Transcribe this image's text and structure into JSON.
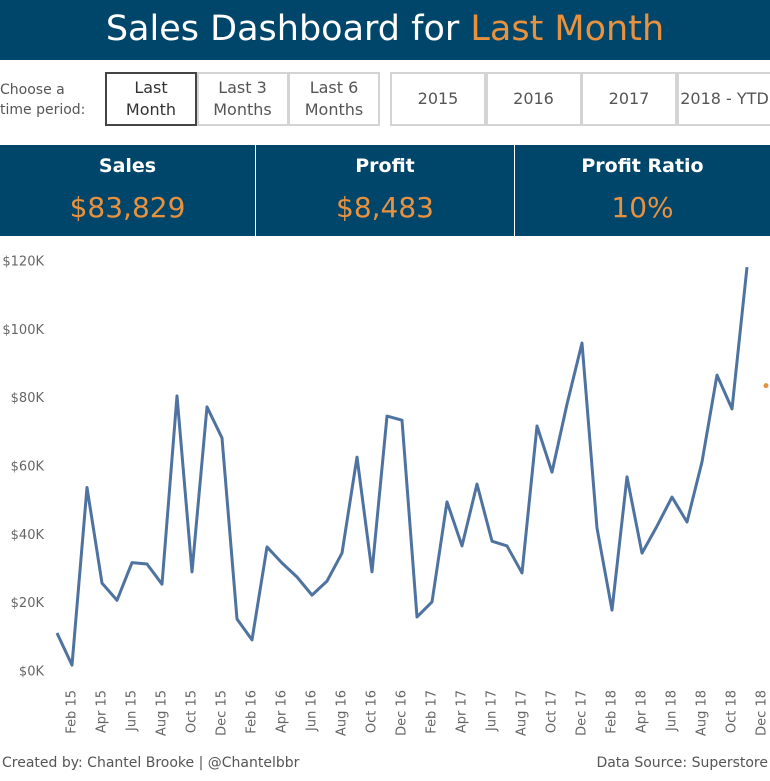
{
  "header": {
    "title": "Sales Dashboard for",
    "title_highlight": "Last Month"
  },
  "controls": {
    "label": [
      "Choose a",
      "time period:"
    ],
    "periods": [
      [
        "Last",
        "Month"
      ],
      [
        "Last 3",
        "Months"
      ],
      [
        "Last 6",
        "Months"
      ]
    ],
    "years": [
      "2015",
      "2016",
      "2017",
      "2018 - YTD"
    ]
  },
  "kpis": [
    {
      "label": "Sales",
      "value": "$83,829"
    },
    {
      "label": "Profit",
      "value": "$8,483"
    },
    {
      "label": "Profit Ratio",
      "value": "10%"
    }
  ],
  "chart_data": {
    "type": "line",
    "categories": [
      null,
      "Feb 15",
      null,
      "Apr 15",
      null,
      "Jun 15",
      null,
      "Aug 15",
      null,
      "Oct 15",
      null,
      "Dec 15",
      null,
      "Feb 16",
      null,
      "Apr 16",
      null,
      "Jun 16",
      null,
      "Aug 16",
      null,
      "Oct 16",
      null,
      "Dec 16",
      null,
      "Feb 17",
      null,
      "Apr 17",
      null,
      "Jun 17",
      null,
      "Aug 17",
      null,
      "Oct 17",
      null,
      "Dec 17",
      null,
      "Feb 18",
      null,
      "Apr 18",
      null,
      "Jun 18",
      null,
      "Aug 18",
      null,
      "Oct 18",
      null,
      "Dec 18"
    ],
    "series": [
      {
        "color": "#4e73a0",
        "values": [
          11400,
          2000,
          54000,
          26000,
          21000,
          32000,
          31600,
          25700,
          80800,
          29300,
          77600,
          68500,
          15500,
          9400,
          36600,
          31900,
          27800,
          22500,
          26600,
          34800,
          62900,
          29300,
          74900,
          73700,
          16100,
          20500,
          49800,
          36900,
          55000,
          38300,
          36900,
          29000,
          72000,
          58500,
          78400,
          96300,
          42100,
          18100,
          57100,
          34800,
          42700,
          51200,
          43900,
          61500,
          86900,
          77000,
          118500,
          null
        ]
      },
      {
        "color": "#e8913e",
        "values": [
          null,
          null,
          null,
          null,
          null,
          null,
          null,
          null,
          null,
          null,
          null,
          null,
          null,
          null,
          null,
          null,
          null,
          null,
          null,
          null,
          null,
          null,
          null,
          null,
          null,
          null,
          null,
          null,
          null,
          null,
          null,
          null,
          null,
          null,
          null,
          null,
          null,
          null,
          null,
          null,
          null,
          null,
          null,
          null,
          null,
          null,
          null,
          83829
        ]
      }
    ],
    "ylim": [
      0,
      120000
    ],
    "yticks": [
      {
        "value": 0,
        "label": "$0K"
      },
      {
        "value": 20000,
        "label": "$20K"
      },
      {
        "value": 40000,
        "label": "$40K"
      },
      {
        "value": 60000,
        "label": "$60K"
      },
      {
        "value": 80000,
        "label": "$80K"
      },
      {
        "value": 100000,
        "label": "$100K"
      },
      {
        "value": 120000,
        "label": "$120K"
      }
    ],
    "grid": false
  },
  "footer": {
    "credit": "Created by: Chantel Brooke | @Chantelbbr",
    "source": "Data Source: Superstore"
  }
}
